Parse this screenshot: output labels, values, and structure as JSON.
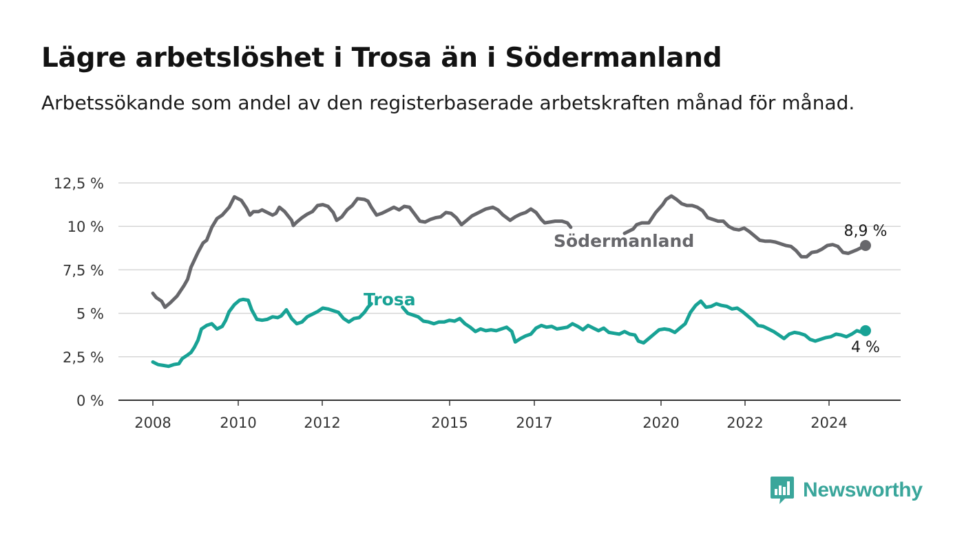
{
  "header": {
    "title": "Lägre arbetslöshet i Trosa än i Södermanland",
    "subtitle": "Arbetssökande som andel av den registerbaserade arbetskraften månad för månad."
  },
  "brand": {
    "name": "Newsworthy",
    "color": "#3aa69b",
    "icon": "newsworthy-chat-bars-icon"
  },
  "chart_data": {
    "type": "line",
    "title": "Lägre arbetslöshet i Trosa än i Södermanland",
    "subtitle": "Arbetssökande som andel av den registerbaserade arbetskraften månad för månad.",
    "xlabel": "",
    "ylabel": "",
    "x_range": [
      2008.0,
      2025.0
    ],
    "ylim": [
      0,
      12.5
    ],
    "y_ticks": [
      0,
      2.5,
      5,
      7.5,
      10,
      12.5
    ],
    "y_tick_labels": [
      "0 %",
      "2,5 %",
      "5 %",
      "7,5 %",
      "10 %",
      "12,5 %"
    ],
    "x_ticks": [
      2008,
      2010,
      2012,
      2015,
      2017,
      2020,
      2022,
      2024
    ],
    "x_tick_labels": [
      "2008",
      "2010",
      "2012",
      "2015",
      "2017",
      "2020",
      "2022",
      "2024"
    ],
    "grid": true,
    "legend": "direct labels on lines",
    "series": [
      {
        "name": "Södermanland",
        "color": "#67676b",
        "label_anchor": [
          2011.9,
          9.3
        ],
        "end_label": "8,9 %",
        "points": [
          [
            2008.0,
            6.15
          ],
          [
            2008.1,
            5.9
          ],
          [
            2008.25,
            5.7
          ],
          [
            2008.35,
            5.35
          ],
          [
            2008.5,
            5.6
          ],
          [
            2008.7,
            6.0
          ],
          [
            2008.9,
            6.6
          ],
          [
            2009.0,
            6.95
          ],
          [
            2009.1,
            7.65
          ],
          [
            2009.3,
            8.5
          ],
          [
            2009.45,
            9.05
          ],
          [
            2009.55,
            9.2
          ],
          [
            2009.7,
            9.95
          ],
          [
            2009.85,
            10.45
          ],
          [
            2010.0,
            10.65
          ],
          [
            2010.2,
            11.1
          ],
          [
            2010.35,
            11.7
          ],
          [
            2010.55,
            11.5
          ],
          [
            2010.7,
            11.05
          ],
          [
            2010.8,
            10.65
          ],
          [
            2010.9,
            10.85
          ],
          [
            2011.05,
            10.85
          ],
          [
            2011.15,
            10.95
          ],
          [
            2011.3,
            10.8
          ],
          [
            2011.45,
            10.65
          ],
          [
            2011.55,
            10.75
          ],
          [
            2011.65,
            11.1
          ],
          [
            2011.8,
            10.85
          ],
          [
            2012.0,
            10.35
          ],
          [
            2012.05,
            10.05
          ],
          [
            2012.15,
            10.25
          ],
          [
            2012.3,
            10.5
          ],
          [
            2012.45,
            10.7
          ],
          [
            2012.6,
            10.85
          ],
          [
            2012.75,
            11.2
          ],
          [
            2012.9,
            11.25
          ],
          [
            2013.05,
            11.15
          ],
          [
            2013.2,
            10.8
          ],
          [
            2013.3,
            10.35
          ],
          [
            2013.45,
            10.55
          ],
          [
            2013.6,
            10.95
          ],
          [
            2013.75,
            11.2
          ],
          [
            2013.9,
            11.6
          ],
          [
            2014.1,
            11.55
          ],
          [
            2014.2,
            11.45
          ],
          [
            2014.3,
            11.1
          ],
          [
            2014.45,
            10.65
          ],
          [
            2014.6,
            10.75
          ],
          [
            2014.8,
            10.95
          ],
          [
            2014.95,
            11.1
          ],
          [
            2015.1,
            10.95
          ],
          [
            2015.25,
            11.15
          ],
          [
            2015.4,
            11.1
          ],
          [
            2015.55,
            10.7
          ],
          [
            2015.7,
            10.3
          ],
          [
            2015.85,
            10.25
          ],
          [
            2016.0,
            10.4
          ],
          [
            2016.15,
            10.5
          ],
          [
            2016.3,
            10.55
          ],
          [
            2016.45,
            10.8
          ],
          [
            2016.6,
            10.75
          ],
          [
            2016.75,
            10.5
          ],
          [
            2016.9,
            10.1
          ],
          [
            2017.05,
            10.35
          ],
          [
            2017.2,
            10.6
          ],
          [
            2017.4,
            10.8
          ],
          [
            2017.6,
            11.0
          ],
          [
            2017.8,
            11.1
          ],
          [
            2017.95,
            10.95
          ],
          [
            2018.1,
            10.65
          ],
          [
            2018.3,
            10.35
          ],
          [
            2018.45,
            10.55
          ],
          [
            2018.6,
            10.7
          ],
          [
            2018.75,
            10.8
          ],
          [
            2018.9,
            11.0
          ],
          [
            2019.05,
            10.8
          ],
          [
            2019.2,
            10.4
          ],
          [
            2019.3,
            10.2
          ],
          [
            2019.45,
            10.25
          ],
          [
            2019.6,
            10.3
          ],
          [
            2019.8,
            10.3
          ],
          [
            2019.95,
            10.2
          ],
          [
            2020.05,
            9.95
          ]
        ],
        "points_2": [
          [
            2021.6,
            9.6
          ],
          [
            2021.85,
            9.85
          ],
          [
            2021.95,
            10.1
          ],
          [
            2022.1,
            10.2
          ],
          [
            2022.3,
            10.2
          ],
          [
            2022.5,
            10.8
          ],
          [
            2022.7,
            11.25
          ],
          [
            2022.8,
            11.55
          ],
          [
            2022.95,
            11.75
          ],
          [
            2023.1,
            11.55
          ],
          [
            2023.25,
            11.3
          ],
          [
            2023.4,
            11.2
          ],
          [
            2023.55,
            11.2
          ],
          [
            2023.7,
            11.1
          ],
          [
            2023.85,
            10.9
          ],
          [
            2024.0,
            10.5
          ],
          [
            2024.15,
            10.4
          ],
          [
            2024.3,
            10.3
          ],
          [
            2024.45,
            10.3
          ],
          [
            2024.6,
            10.0
          ],
          [
            2024.75,
            9.85
          ],
          [
            2024.9,
            9.8
          ],
          [
            2025.05,
            9.9
          ],
          [
            2025.2,
            9.7
          ],
          [
            2025.35,
            9.45
          ],
          [
            2025.5,
            9.2
          ],
          [
            2025.65,
            9.15
          ],
          [
            2025.8,
            9.15
          ],
          [
            2025.95,
            9.1
          ],
          [
            2026.1,
            9.0
          ],
          [
            2026.25,
            8.9
          ],
          [
            2026.4,
            8.85
          ],
          [
            2026.55,
            8.6
          ],
          [
            2026.7,
            8.25
          ],
          [
            2026.85,
            8.25
          ],
          [
            2027.0,
            8.5
          ],
          [
            2027.15,
            8.55
          ],
          [
            2027.3,
            8.7
          ],
          [
            2027.45,
            8.9
          ],
          [
            2027.6,
            8.95
          ],
          [
            2027.75,
            8.85
          ],
          [
            2027.9,
            8.5
          ],
          [
            2028.05,
            8.45
          ],
          [
            2028.3,
            8.65
          ],
          [
            2028.55,
            8.9
          ]
        ]
      },
      {
        "name": "Trosa",
        "color": "#18a295",
        "label_anchor": [
          2013.9,
          5.75
        ],
        "end_label": "4 %",
        "points": [
          [
            2008.0,
            2.2
          ],
          [
            2008.15,
            2.05
          ],
          [
            2008.3,
            2.0
          ],
          [
            2008.45,
            1.95
          ],
          [
            2008.6,
            2.05
          ],
          [
            2008.75,
            2.1
          ],
          [
            2008.85,
            2.4
          ],
          [
            2009.0,
            2.6
          ],
          [
            2009.1,
            2.75
          ],
          [
            2009.2,
            3.05
          ],
          [
            2009.3,
            3.45
          ],
          [
            2009.4,
            4.1
          ],
          [
            2009.55,
            4.3
          ],
          [
            2009.7,
            4.4
          ],
          [
            2009.85,
            4.1
          ],
          [
            2010.0,
            4.25
          ],
          [
            2010.1,
            4.6
          ],
          [
            2010.2,
            5.1
          ],
          [
            2010.35,
            5.5
          ],
          [
            2010.5,
            5.75
          ],
          [
            2010.6,
            5.8
          ],
          [
            2010.75,
            5.75
          ],
          [
            2010.85,
            5.2
          ],
          [
            2011.0,
            4.65
          ],
          [
            2011.15,
            4.6
          ],
          [
            2011.3,
            4.65
          ],
          [
            2011.45,
            4.8
          ],
          [
            2011.6,
            4.75
          ],
          [
            2011.7,
            4.85
          ],
          [
            2011.85,
            5.2
          ],
          [
            2012.0,
            4.7
          ],
          [
            2012.15,
            4.4
          ],
          [
            2012.3,
            4.5
          ],
          [
            2012.45,
            4.8
          ],
          [
            2012.6,
            4.95
          ],
          [
            2012.75,
            5.1
          ],
          [
            2012.9,
            5.3
          ],
          [
            2013.05,
            5.25
          ],
          [
            2013.2,
            5.15
          ],
          [
            2013.35,
            5.05
          ],
          [
            2013.5,
            4.7
          ],
          [
            2013.65,
            4.5
          ],
          [
            2013.8,
            4.7
          ],
          [
            2013.95,
            4.75
          ],
          [
            2014.1,
            5.05
          ],
          [
            2014.2,
            5.35
          ],
          [
            2014.3,
            5.55
          ]
        ],
        "points_2": [
          [
            2015.2,
            5.35
          ],
          [
            2015.35,
            5.0
          ],
          [
            2015.5,
            4.9
          ],
          [
            2015.65,
            4.8
          ],
          [
            2015.8,
            4.55
          ],
          [
            2015.95,
            4.5
          ],
          [
            2016.1,
            4.4
          ],
          [
            2016.25,
            4.5
          ],
          [
            2016.4,
            4.5
          ],
          [
            2016.55,
            4.6
          ],
          [
            2016.7,
            4.55
          ],
          [
            2016.85,
            4.7
          ],
          [
            2017.0,
            4.4
          ],
          [
            2017.15,
            4.2
          ],
          [
            2017.3,
            3.95
          ],
          [
            2017.45,
            4.1
          ],
          [
            2017.6,
            4.0
          ],
          [
            2017.75,
            4.05
          ],
          [
            2017.9,
            4.0
          ],
          [
            2018.05,
            4.1
          ],
          [
            2018.2,
            4.2
          ],
          [
            2018.35,
            3.95
          ],
          [
            2018.45,
            3.35
          ],
          [
            2018.6,
            3.55
          ],
          [
            2018.75,
            3.7
          ],
          [
            2018.9,
            3.8
          ],
          [
            2019.05,
            4.15
          ],
          [
            2019.2,
            4.3
          ],
          [
            2019.35,
            4.2
          ],
          [
            2019.5,
            4.25
          ],
          [
            2019.65,
            4.1
          ],
          [
            2019.8,
            4.15
          ],
          [
            2019.95,
            4.2
          ],
          [
            2020.1,
            4.4
          ],
          [
            2020.25,
            4.25
          ],
          [
            2020.4,
            4.05
          ],
          [
            2020.55,
            4.3
          ],
          [
            2020.7,
            4.15
          ],
          [
            2020.85,
            4.0
          ],
          [
            2021.0,
            4.15
          ],
          [
            2021.15,
            3.9
          ],
          [
            2021.3,
            3.85
          ],
          [
            2021.45,
            3.8
          ],
          [
            2021.6,
            3.95
          ],
          [
            2021.75,
            3.8
          ],
          [
            2021.9,
            3.75
          ],
          [
            2022.0,
            3.4
          ],
          [
            2022.15,
            3.3
          ],
          [
            2022.3,
            3.55
          ],
          [
            2022.45,
            3.8
          ],
          [
            2022.6,
            4.05
          ],
          [
            2022.75,
            4.1
          ],
          [
            2022.9,
            4.05
          ],
          [
            2023.05,
            3.9
          ],
          [
            2023.2,
            4.15
          ],
          [
            2023.35,
            4.4
          ],
          [
            2023.5,
            5.05
          ],
          [
            2023.65,
            5.45
          ],
          [
            2023.8,
            5.7
          ],
          [
            2023.95,
            5.35
          ],
          [
            2024.1,
            5.4
          ],
          [
            2024.25,
            5.55
          ],
          [
            2024.4,
            5.45
          ],
          [
            2024.55,
            5.4
          ],
          [
            2024.7,
            5.25
          ],
          [
            2024.85,
            5.3
          ],
          [
            2025.0,
            5.1
          ],
          [
            2025.15,
            4.85
          ],
          [
            2025.3,
            4.6
          ],
          [
            2025.45,
            4.3
          ],
          [
            2025.6,
            4.25
          ],
          [
            2025.75,
            4.1
          ],
          [
            2025.9,
            3.95
          ],
          [
            2026.05,
            3.75
          ],
          [
            2026.2,
            3.55
          ],
          [
            2026.35,
            3.8
          ],
          [
            2026.5,
            3.9
          ],
          [
            2026.65,
            3.85
          ],
          [
            2026.8,
            3.75
          ],
          [
            2026.95,
            3.5
          ],
          [
            2027.1,
            3.4
          ],
          [
            2027.25,
            3.5
          ],
          [
            2027.4,
            3.6
          ],
          [
            2027.55,
            3.65
          ],
          [
            2027.7,
            3.8
          ],
          [
            2027.85,
            3.75
          ],
          [
            2028.0,
            3.65
          ],
          [
            2028.15,
            3.8
          ],
          [
            2028.3,
            4.0
          ],
          [
            2028.45,
            3.9
          ],
          [
            2028.55,
            4.0
          ]
        ]
      }
    ]
  }
}
